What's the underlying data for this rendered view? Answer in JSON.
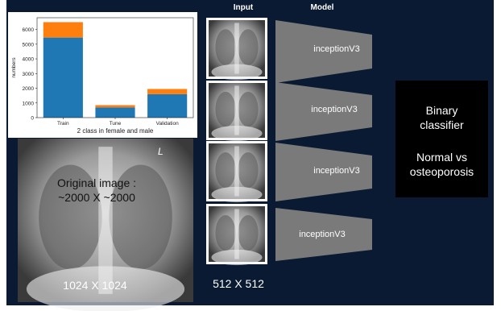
{
  "chart_data": {
    "type": "stacked-bar",
    "xlabel": "2 class in female and male",
    "ylabel": "numbers",
    "categories": [
      "Train",
      "Tune",
      "Validation"
    ],
    "series": [
      {
        "color": "#1f77b4",
        "values": [
          5450,
          700,
          1600
        ]
      },
      {
        "color": "#ff7f0e",
        "values": [
          1050,
          150,
          350
        ]
      }
    ],
    "ylim": [
      0,
      6800
    ],
    "yticks": [
      0,
      1000,
      2000,
      3000,
      4000,
      5000,
      6000
    ]
  },
  "diagram": {
    "input_header": "Input",
    "model_header": "Model",
    "original_caption": "Original image : ~2000 X ~2000",
    "original_marker": "L",
    "original_size": "1024 X 1024",
    "input_size": "512 X 512",
    "models": [
      "inceptionV3",
      "inceptionV3",
      "inceptionV3",
      "inceptionV3"
    ],
    "classifier_title": "Binary classifier",
    "classifier_task": "Normal vs osteoporosis"
  }
}
